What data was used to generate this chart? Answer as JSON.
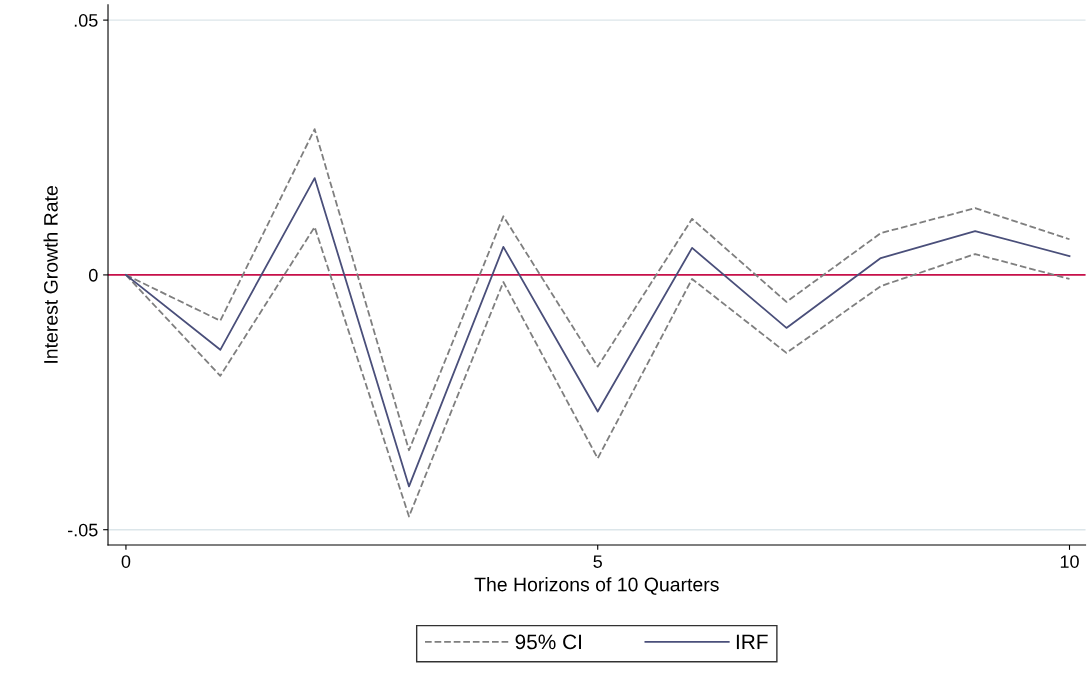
{
  "chart_data": {
    "type": "line",
    "xlabel": "The Horizons of 10 Quarters",
    "ylabel": "Interest Growth Rate",
    "x": [
      0,
      1,
      2,
      3,
      4,
      5,
      6,
      7,
      8,
      9,
      10
    ],
    "series": [
      {
        "name": "95% CI",
        "color": "#7f7f7f",
        "line_style": "dashed",
        "values": [
          0,
          -0.009,
          0.0286,
          -0.0344,
          0.0115,
          -0.018,
          0.011,
          -0.0053,
          0.0082,
          0.0131,
          0.007
        ]
      },
      {
        "color": "#7f7f7f",
        "line_style": "dashed",
        "values": [
          0,
          -0.0198,
          0.0094,
          -0.0474,
          -0.0014,
          -0.036,
          -0.0008,
          -0.0153,
          -0.0022,
          0.0041,
          -0.0008
        ]
      },
      {
        "name": "IRF",
        "color": "#4a4f7a",
        "line_style": "solid",
        "values": [
          0,
          -0.0147,
          0.019,
          -0.0415,
          0.0055,
          -0.0268,
          0.0053,
          -0.0104,
          0.0033,
          0.0086,
          0.0037
        ]
      }
    ],
    "xlim": [
      -0.19,
      10.17
    ],
    "ylim": [
      -0.053,
      0.053
    ],
    "xticks": [
      0,
      5,
      10
    ],
    "yticks": [
      {
        "value": -0.05,
        "label": "-.05"
      },
      {
        "value": 0,
        "label": "0"
      },
      {
        "value": 0.05,
        "label": ".05"
      }
    ],
    "ref_lines": [
      {
        "axis": "y",
        "value": 0,
        "color": "#c8104a"
      }
    ],
    "grid": "y",
    "legend": "bottom",
    "marker": "none"
  }
}
